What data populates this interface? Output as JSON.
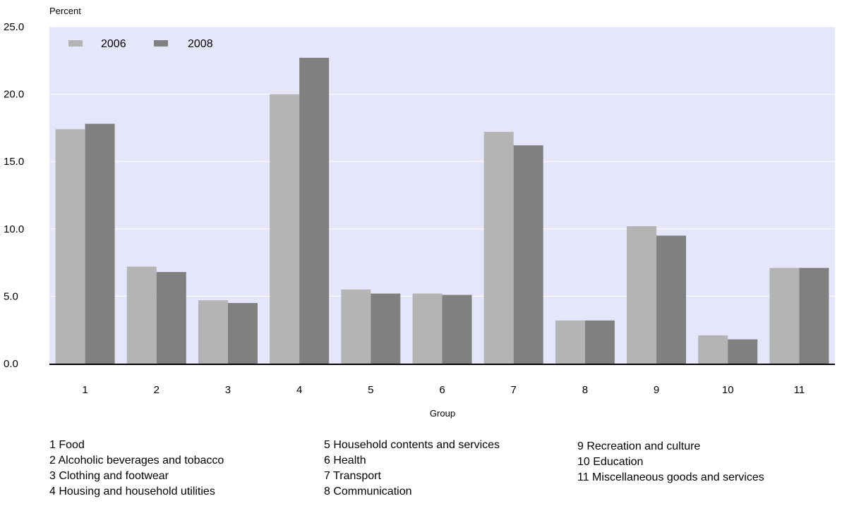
{
  "chart_data": {
    "type": "bar",
    "ylabel": "Percent",
    "xlabel": "Group",
    "ylim": [
      0,
      25
    ],
    "yticks": [
      "0.0",
      "5.0",
      "10.0",
      "15.0",
      "20.0",
      "25.0"
    ],
    "ytick_values": [
      0,
      5,
      10,
      15,
      20,
      25
    ],
    "categories": [
      "1",
      "2",
      "3",
      "4",
      "5",
      "6",
      "7",
      "8",
      "9",
      "10",
      "11"
    ],
    "grid": true,
    "legend_position": "top-left",
    "series": [
      {
        "name": "2006",
        "color": "#b4b4b4",
        "values": [
          17.4,
          7.2,
          4.7,
          20.0,
          5.5,
          5.2,
          17.2,
          3.2,
          10.2,
          2.1,
          7.1
        ]
      },
      {
        "name": "2008",
        "color": "#808080",
        "values": [
          17.8,
          6.8,
          4.5,
          22.7,
          5.2,
          5.1,
          16.2,
          3.2,
          9.5,
          1.8,
          7.1
        ]
      }
    ],
    "plot_background": "#e6e6fa"
  },
  "key": {
    "column1": [
      "1 Food",
      "2 Alcoholic beverages and tobacco",
      "3 Clothing and footwear",
      "4 Housing and household utilities"
    ],
    "column2": [
      "5 Household contents and services",
      "6 Health",
      "7 Transport",
      "8 Communication"
    ],
    "column3": [
      "9 Recreation and culture",
      "10 Education",
      "11 Miscellaneous goods and services"
    ]
  }
}
